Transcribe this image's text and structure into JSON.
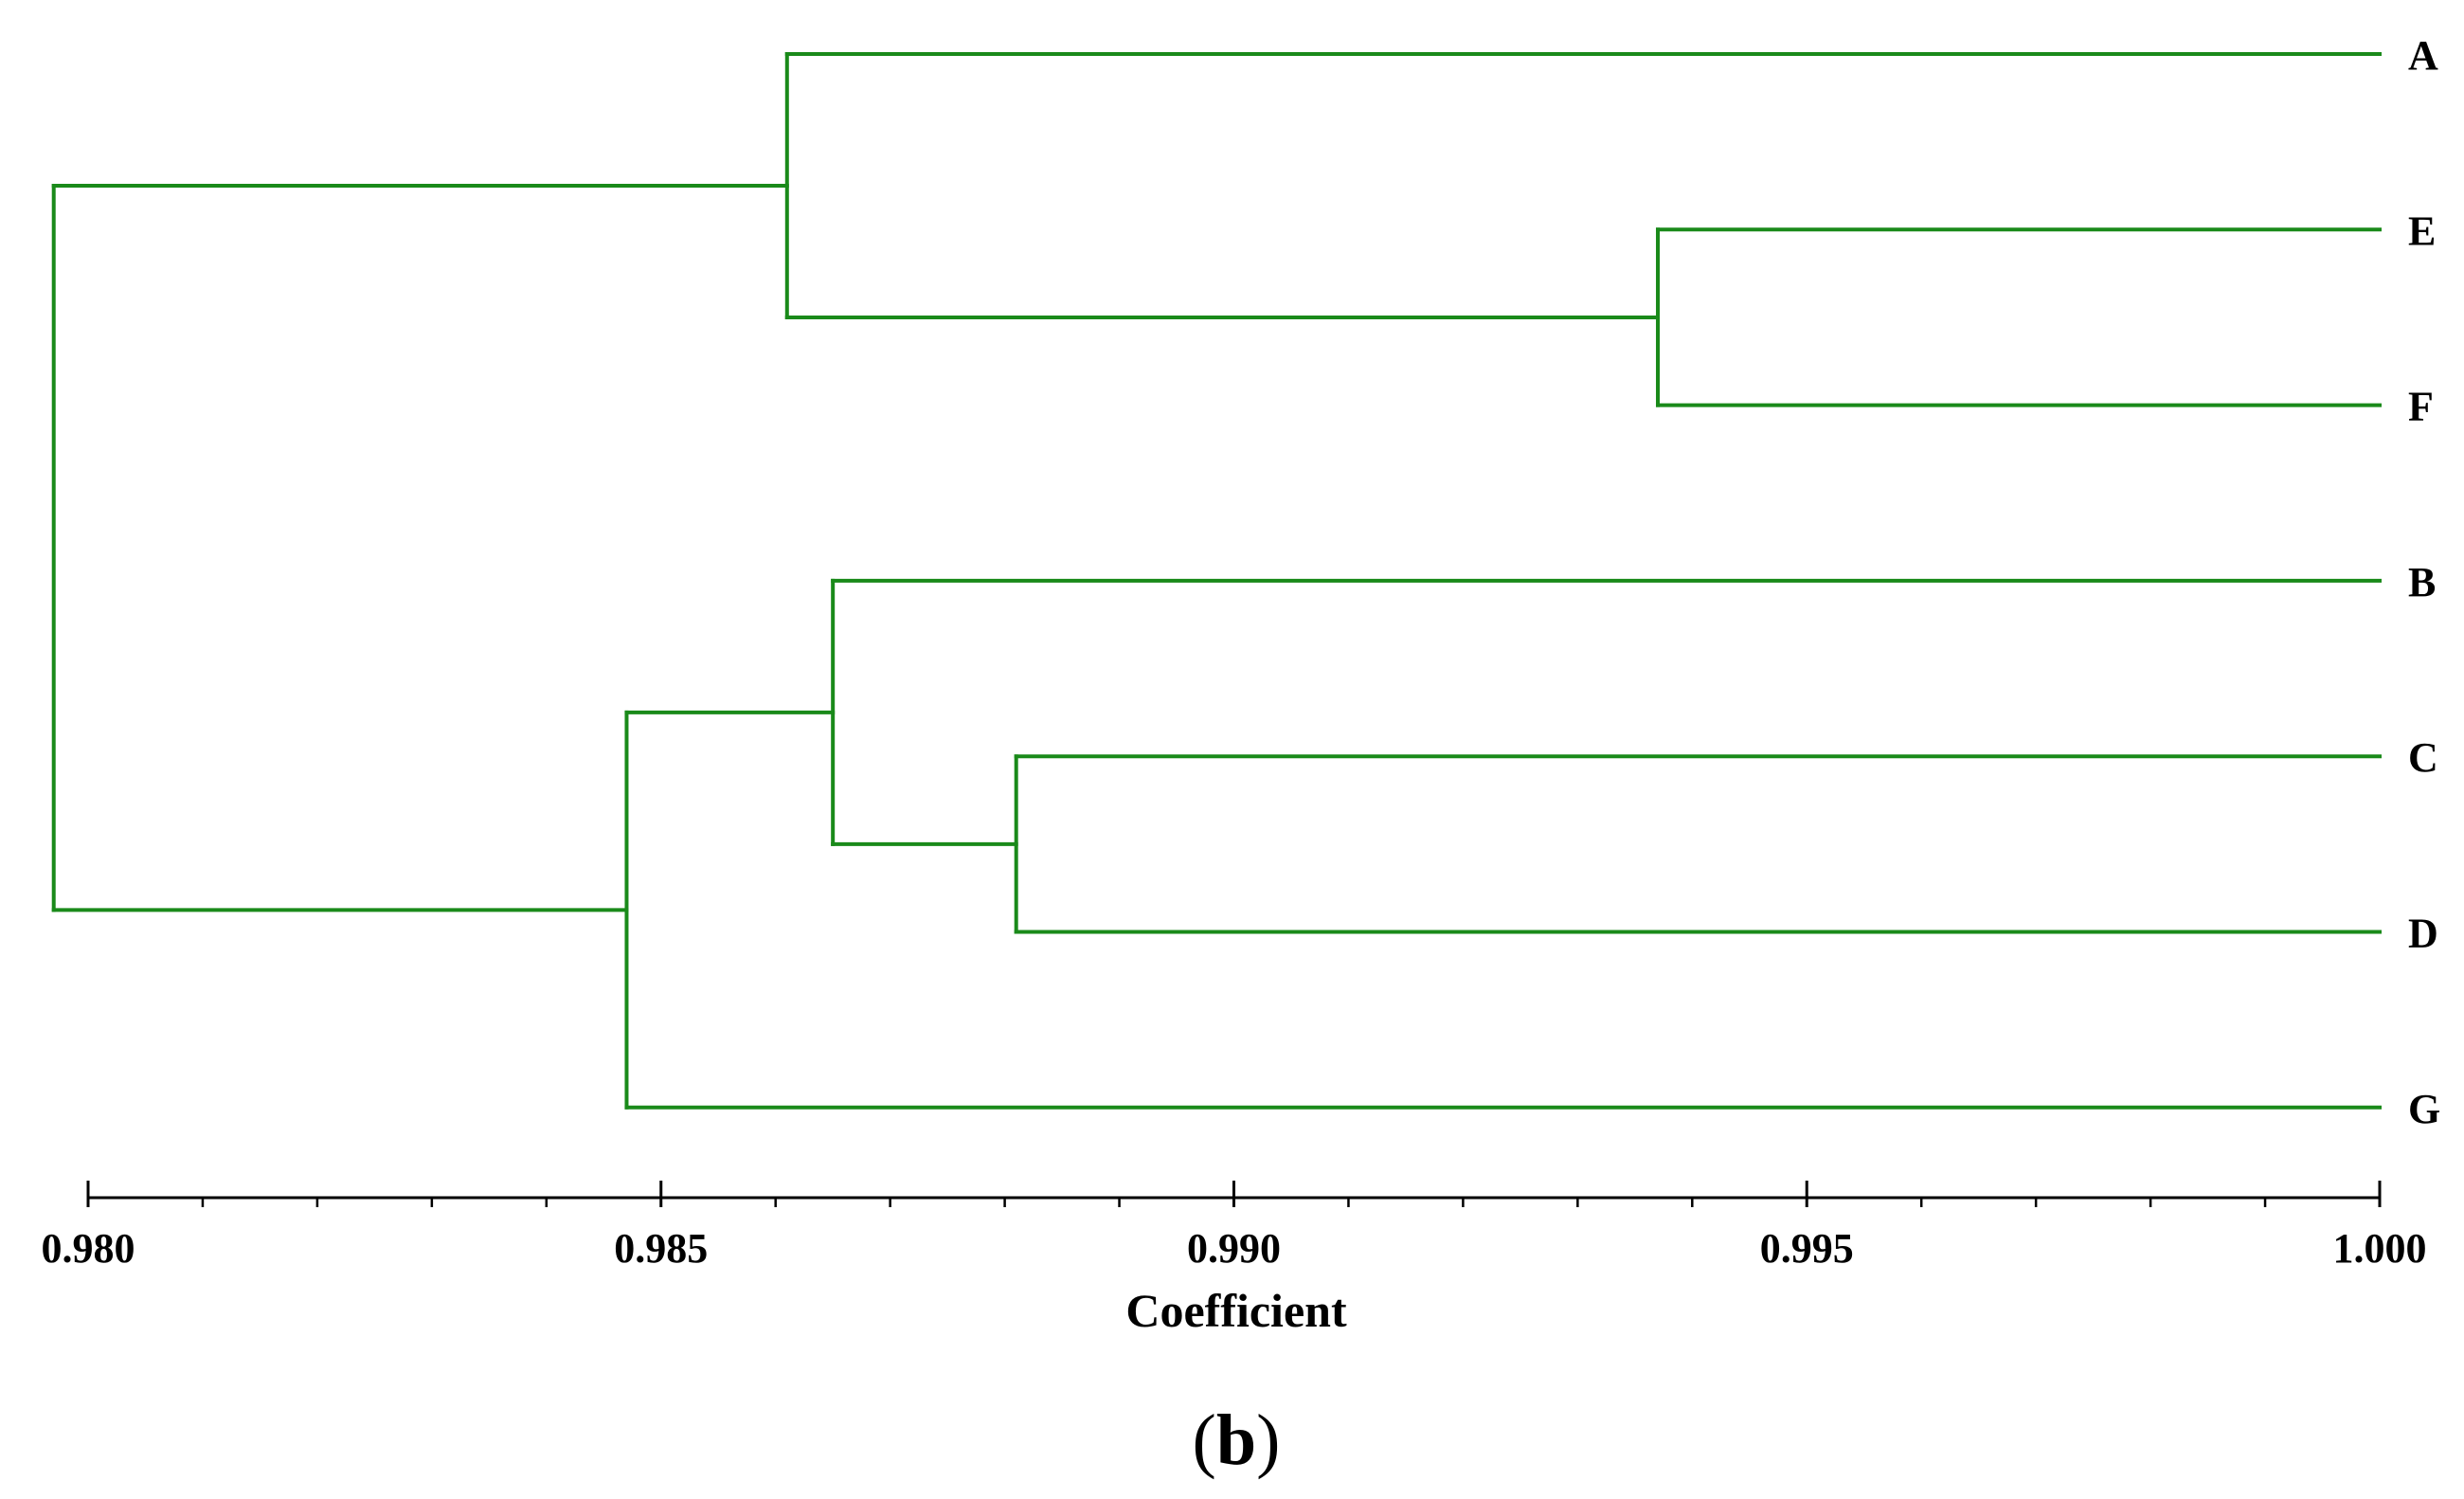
{
  "chart_data": {
    "type": "dendrogram",
    "xlabel": "Coefficient",
    "xlim": [
      0.98,
      1.0
    ],
    "ticks": [
      "0.980",
      "0.985",
      "0.990",
      "0.995",
      "1.000"
    ],
    "minor_tick_step": 0.001,
    "panel_label": "b",
    "leaves": [
      "A",
      "E",
      "F",
      "B",
      "C",
      "D",
      "G"
    ],
    "merges": [
      {
        "id": "EF",
        "children": [
          "E",
          "F"
        ],
        "coefficient": 0.9937
      },
      {
        "id": "CD",
        "children": [
          "C",
          "D"
        ],
        "coefficient": 0.9881
      },
      {
        "id": "B_CD",
        "children": [
          "B",
          "CD"
        ],
        "coefficient": 0.9865
      },
      {
        "id": "A_EF",
        "children": [
          "A",
          "EF"
        ],
        "coefficient": 0.9861
      },
      {
        "id": "BCD_G",
        "children": [
          "B_CD",
          "G"
        ],
        "coefficient": 0.9847
      },
      {
        "id": "root",
        "children": [
          "A_EF",
          "BCD_G"
        ],
        "coefficient": 0.9797
      }
    ],
    "line_color": "#1a8a1a"
  }
}
